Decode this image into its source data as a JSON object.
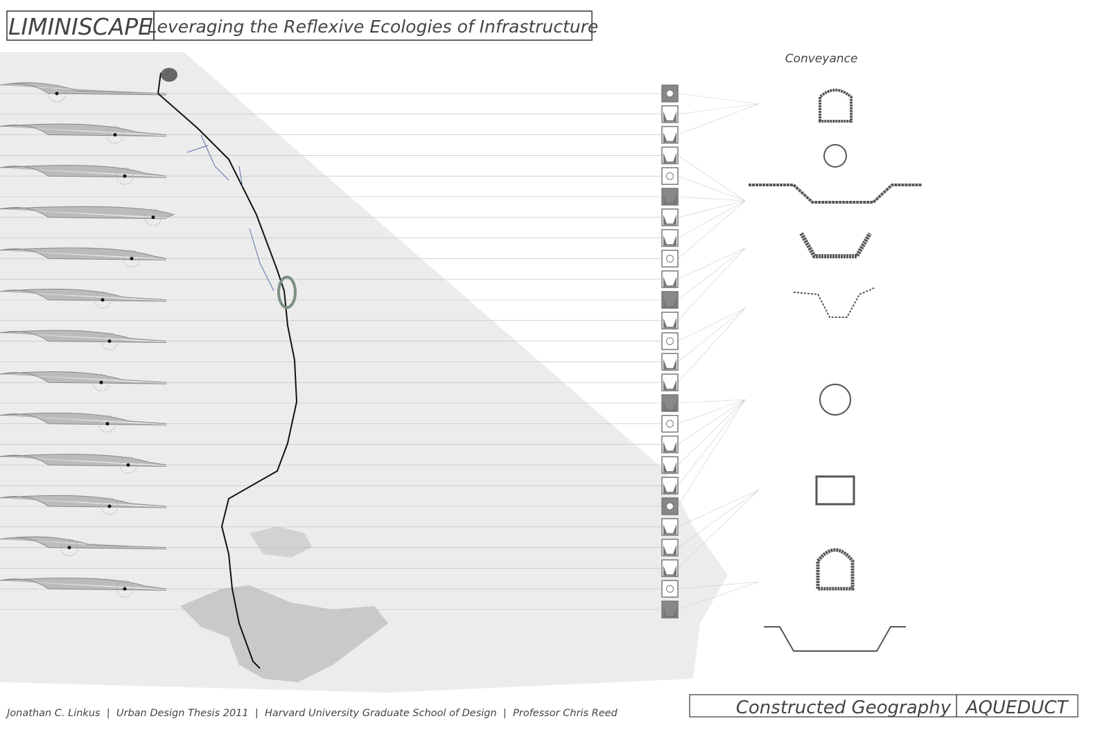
{
  "header": {
    "title": "LIMINISCAPE",
    "subtitle": "Leveraging the Reflexive Ecologies of Infrastructure"
  },
  "section_label": "Conveyance",
  "footer": {
    "credits": "Jonathan C. Linkus  |  Urban Design Thesis 2011  |  Harvard University Graduate School of Design  |  Professor Chris Reed",
    "sheet_title": "Constructed Geography",
    "sheet_label": "AQUEDUCT"
  }
}
